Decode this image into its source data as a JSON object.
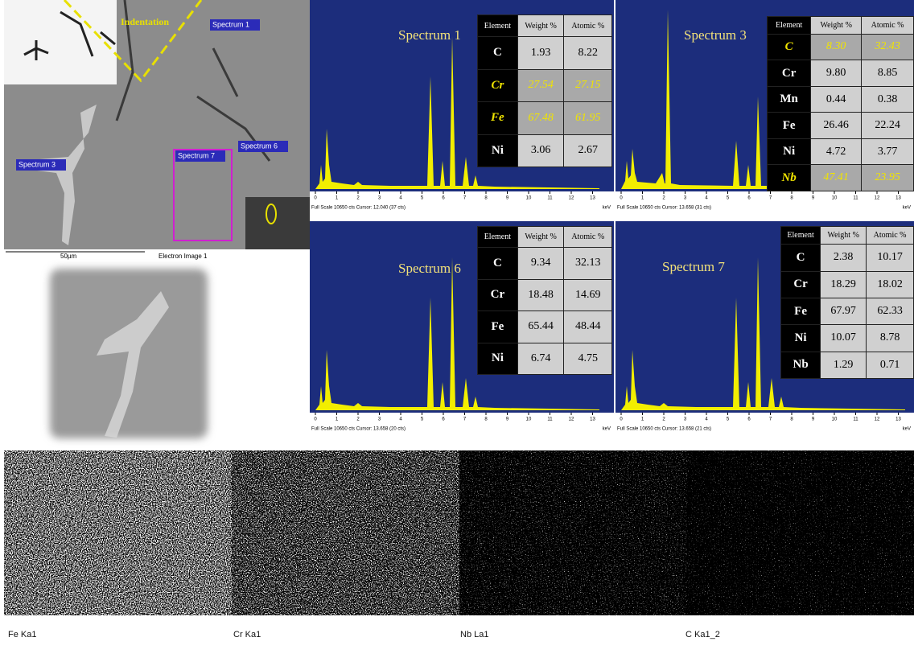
{
  "sem_image": {
    "labels": {
      "indentation": "Indentation",
      "spectrum_1": "Spectrum 1",
      "spectrum_3": "Spectrum 3",
      "spectrum_6": "Spectrum 6",
      "spectrum_7": "Spectrum 7"
    },
    "scale_bar": "50µm",
    "caption": "Electron Image 1"
  },
  "spectrum_xticks": [
    0,
    1,
    2,
    3,
    4,
    5,
    6,
    7,
    8,
    9,
    10,
    11,
    12,
    13
  ],
  "spectra": [
    {
      "title": "Spectrum 1",
      "footer": "Full Scale 10650 cts Cursor: 12.040 (37 cts)",
      "unit": "keV",
      "table": {
        "header": [
          "Element",
          "Weight %",
          "Atomic %"
        ],
        "rows": [
          [
            "C",
            "1.93",
            "8.22"
          ],
          [
            "Cr",
            "27.54",
            "27.15"
          ],
          [
            "Fe",
            "67.48",
            "61.95"
          ],
          [
            "Ni",
            "3.06",
            "2.67"
          ]
        ],
        "highlighted_rows": [
          1,
          2
        ]
      }
    },
    {
      "title": "Spectrum 3",
      "footer": "Full Scale 10650 cts Cursor: 13.658 (31 cts)",
      "unit": "keV",
      "table": {
        "header": [
          "Element",
          "Weight %",
          "Atomic %"
        ],
        "rows": [
          [
            "C",
            "8.30",
            "32.43"
          ],
          [
            "Cr",
            "9.80",
            "8.85"
          ],
          [
            "Mn",
            "0.44",
            "0.38"
          ],
          [
            "Fe",
            "26.46",
            "22.24"
          ],
          [
            "Ni",
            "4.72",
            "3.77"
          ],
          [
            "Nb",
            "47.41",
            "23.95"
          ]
        ],
        "highlighted_rows": [
          0,
          5
        ]
      }
    },
    {
      "title": "Spectrum 6",
      "footer": "Full Scale 10650 cts Cursor: 13.658 (20 cts)",
      "unit": "keV",
      "table": {
        "header": [
          "Element",
          "Weight %",
          "Atomic %"
        ],
        "rows": [
          [
            "C",
            "9.34",
            "32.13"
          ],
          [
            "Cr",
            "18.48",
            "14.69"
          ],
          [
            "Fe",
            "65.44",
            "48.44"
          ],
          [
            "Ni",
            "6.74",
            "4.75"
          ]
        ],
        "highlighted_rows": []
      }
    },
    {
      "title": "Spectrum 7",
      "footer": "Full Scale 10650 cts Cursor: 13.658 (21 cts)",
      "unit": "keV",
      "table": {
        "header": [
          "Element",
          "Weight %",
          "Atomic %"
        ],
        "rows": [
          [
            "C",
            "2.38",
            "10.17"
          ],
          [
            "Cr",
            "18.29",
            "18.02"
          ],
          [
            "Fe",
            "67.97",
            "62.33"
          ],
          [
            "Ni",
            "10.07",
            "8.78"
          ],
          [
            "Nb",
            "1.29",
            "0.71"
          ]
        ],
        "highlighted_rows": []
      }
    }
  ],
  "maps": [
    "Fe Ka1",
    "Cr Ka1",
    "Nb La1",
    "C Ka1_2"
  ]
}
